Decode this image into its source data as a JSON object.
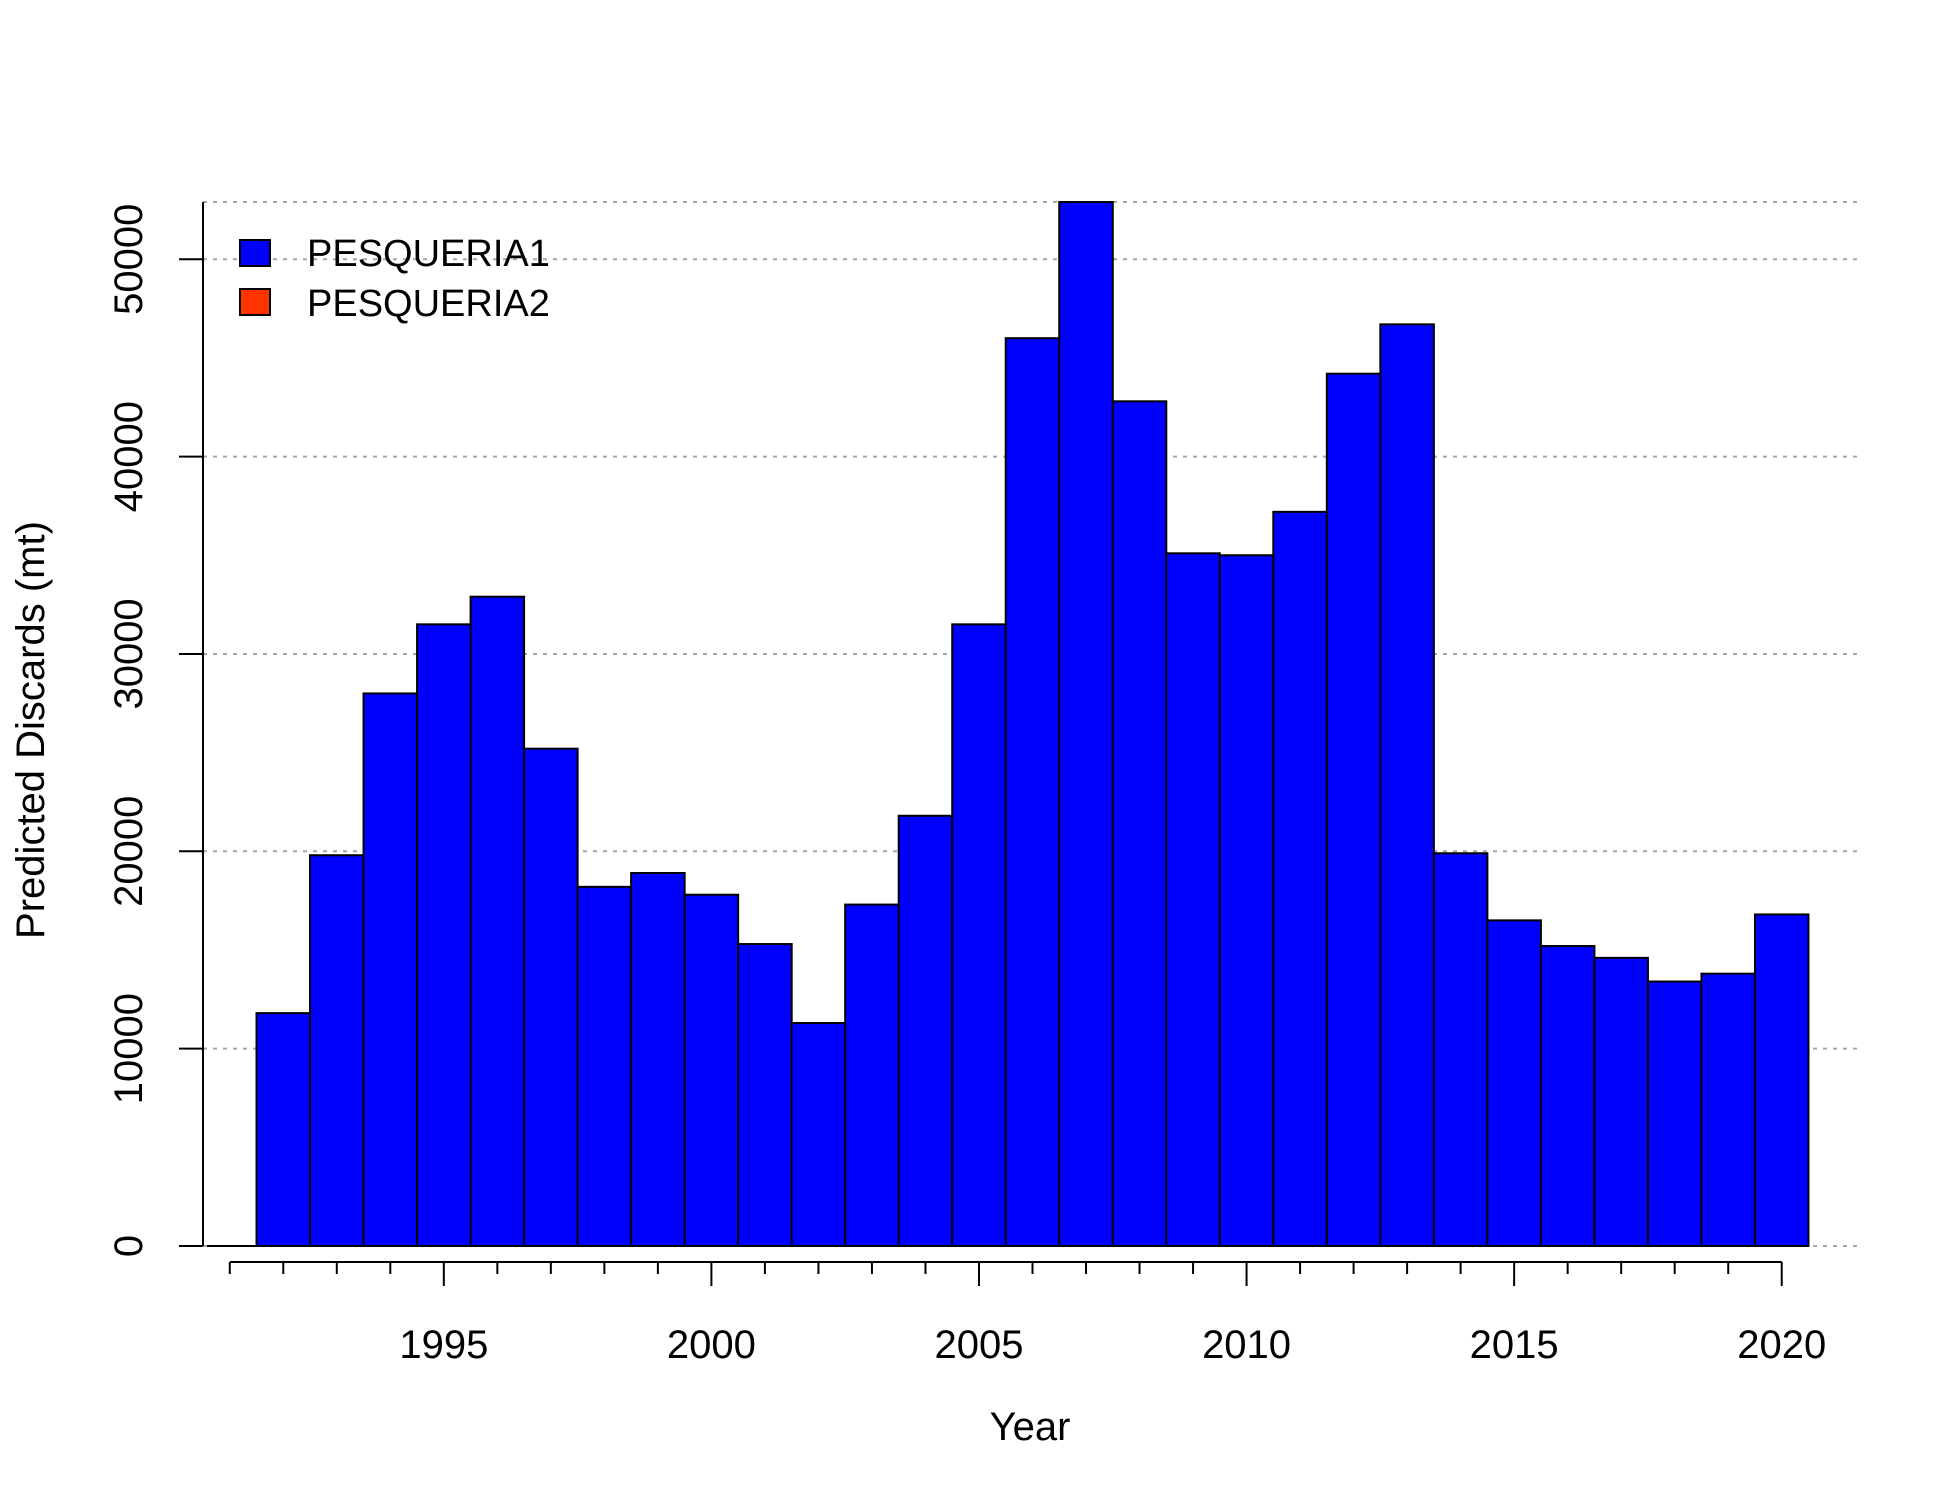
{
  "chart_data": {
    "type": "bar",
    "stacked": true,
    "xlabel": "Year",
    "ylabel": "Predicted Discards (mt)",
    "x": [
      1992,
      1993,
      1994,
      1995,
      1996,
      1997,
      1998,
      1999,
      2000,
      2001,
      2002,
      2003,
      2004,
      2005,
      2006,
      2007,
      2008,
      2009,
      2010,
      2011,
      2012,
      2013,
      2014,
      2015,
      2016,
      2017,
      2018,
      2019,
      2020
    ],
    "series": [
      {
        "name": "PESQUERIA1",
        "color": "#0000ff",
        "values": [
          11800,
          19800,
          28000,
          31500,
          32900,
          25200,
          18200,
          18900,
          17800,
          15300,
          11300,
          17300,
          21800,
          31500,
          46000,
          52900,
          42800,
          35100,
          35000,
          37200,
          44200,
          46700,
          19900,
          16500,
          15200,
          14600,
          13400,
          13800,
          16800
        ]
      },
      {
        "name": "PESQUERIA2",
        "color": "#ff3300",
        "values": [
          0,
          0,
          0,
          0,
          0,
          0,
          0,
          0,
          0,
          0,
          0,
          0,
          0,
          0,
          0,
          0,
          0,
          0,
          0,
          0,
          0,
          0,
          0,
          0,
          0,
          0,
          0,
          0,
          0
        ]
      }
    ],
    "xlim": [
      1990.5,
      2021.5
    ],
    "ylim": [
      0,
      52900
    ],
    "xticks_major": [
      1995,
      2000,
      2005,
      2010,
      2015,
      2020
    ],
    "xtick_labels": [
      "1995",
      "2000",
      "2005",
      "2010",
      "2015",
      "2020"
    ],
    "xticks_minor_range": [
      1991,
      2020
    ],
    "yticks": [
      0,
      10000,
      20000,
      30000,
      40000,
      50000
    ],
    "ytick_labels": [
      "0",
      "10000",
      "20000",
      "30000",
      "40000",
      "50000"
    ],
    "grid": "horizontal dotted",
    "legend_position": "top-left"
  }
}
